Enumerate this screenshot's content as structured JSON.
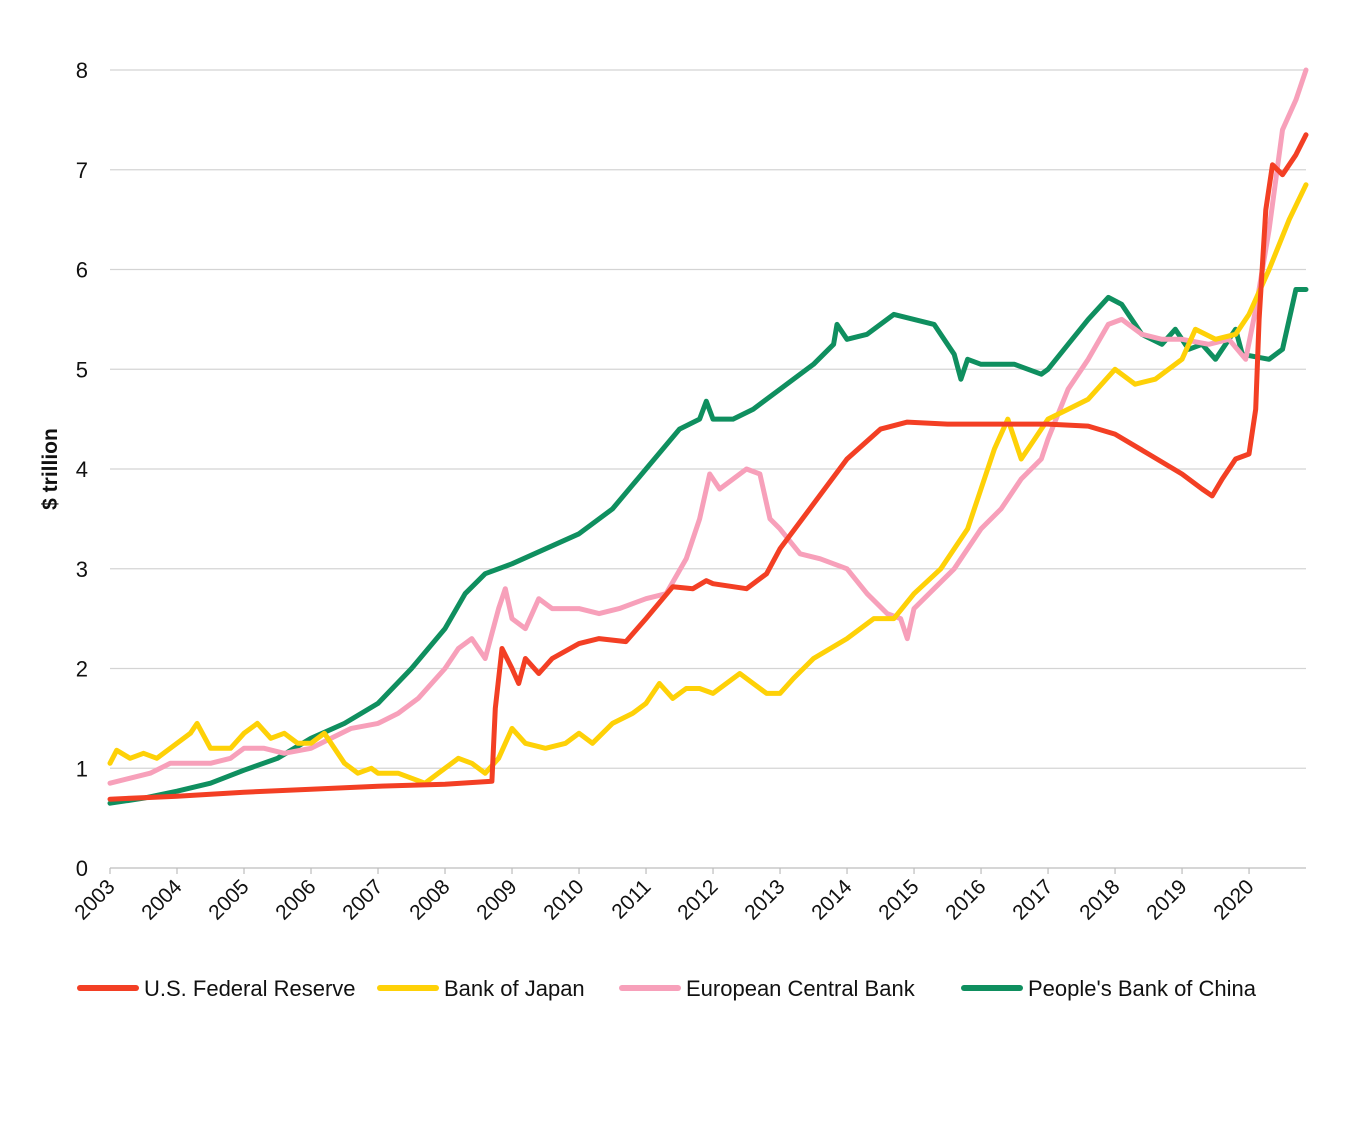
{
  "chart_data": {
    "type": "line",
    "ylabel": "$ trillion",
    "xlabel": "",
    "ylim": [
      0,
      8
    ],
    "xlim": [
      2003,
      2020.85
    ],
    "yticks": [
      0,
      1,
      2,
      3,
      4,
      5,
      6,
      7,
      8
    ],
    "xtick_labels": [
      "2003",
      "2004",
      "2005",
      "2006",
      "2007",
      "2008",
      "2009",
      "2010",
      "2011",
      "2012",
      "2013",
      "2014",
      "2015",
      "2016",
      "2017",
      "2018",
      "2019",
      "2020"
    ],
    "grid": "horizontal",
    "legend_position": "bottom",
    "series": [
      {
        "name": "U.S. Federal Reserve",
        "color": "#f33f24",
        "points": [
          [
            2003,
            0.69
          ],
          [
            2004,
            0.72
          ],
          [
            2005,
            0.76
          ],
          [
            2006,
            0.79
          ],
          [
            2007,
            0.82
          ],
          [
            2008,
            0.84
          ],
          [
            2008.7,
            0.87
          ],
          [
            2008.75,
            1.6
          ],
          [
            2008.85,
            2.2
          ],
          [
            2009.0,
            2.0
          ],
          [
            2009.1,
            1.85
          ],
          [
            2009.2,
            2.1
          ],
          [
            2009.4,
            1.95
          ],
          [
            2009.6,
            2.1
          ],
          [
            2010,
            2.25
          ],
          [
            2010.3,
            2.3
          ],
          [
            2010.7,
            2.27
          ],
          [
            2011,
            2.5
          ],
          [
            2011.4,
            2.82
          ],
          [
            2011.7,
            2.8
          ],
          [
            2011.9,
            2.88
          ],
          [
            2012,
            2.85
          ],
          [
            2012.5,
            2.8
          ],
          [
            2012.8,
            2.95
          ],
          [
            2013,
            3.2
          ],
          [
            2013.5,
            3.65
          ],
          [
            2014,
            4.1
          ],
          [
            2014.5,
            4.4
          ],
          [
            2014.9,
            4.47
          ],
          [
            2015.5,
            4.45
          ],
          [
            2016,
            4.45
          ],
          [
            2017,
            4.45
          ],
          [
            2017.6,
            4.43
          ],
          [
            2018,
            4.35
          ],
          [
            2018.5,
            4.15
          ],
          [
            2019,
            3.95
          ],
          [
            2019.3,
            3.8
          ],
          [
            2019.45,
            3.73
          ],
          [
            2019.6,
            3.9
          ],
          [
            2019.8,
            4.1
          ],
          [
            2020.0,
            4.15
          ],
          [
            2020.1,
            4.6
          ],
          [
            2020.15,
            5.5
          ],
          [
            2020.25,
            6.6
          ],
          [
            2020.35,
            7.05
          ],
          [
            2020.5,
            6.95
          ],
          [
            2020.7,
            7.15
          ],
          [
            2020.85,
            7.35
          ]
        ]
      },
      {
        "name": "Bank of Japan",
        "color": "#fed107",
        "points": [
          [
            2003,
            1.05
          ],
          [
            2003.1,
            1.18
          ],
          [
            2003.3,
            1.1
          ],
          [
            2003.5,
            1.15
          ],
          [
            2003.7,
            1.1
          ],
          [
            2004,
            1.25
          ],
          [
            2004.2,
            1.35
          ],
          [
            2004.3,
            1.45
          ],
          [
            2004.5,
            1.2
          ],
          [
            2004.8,
            1.2
          ],
          [
            2005,
            1.35
          ],
          [
            2005.2,
            1.45
          ],
          [
            2005.4,
            1.3
          ],
          [
            2005.6,
            1.35
          ],
          [
            2005.8,
            1.25
          ],
          [
            2006,
            1.25
          ],
          [
            2006.2,
            1.35
          ],
          [
            2006.3,
            1.25
          ],
          [
            2006.5,
            1.05
          ],
          [
            2006.7,
            0.95
          ],
          [
            2006.9,
            1.0
          ],
          [
            2007,
            0.95
          ],
          [
            2007.3,
            0.95
          ],
          [
            2007.5,
            0.9
          ],
          [
            2007.7,
            0.85
          ],
          [
            2008,
            1.0
          ],
          [
            2008.2,
            1.1
          ],
          [
            2008.4,
            1.05
          ],
          [
            2008.6,
            0.95
          ],
          [
            2008.8,
            1.1
          ],
          [
            2009,
            1.4
          ],
          [
            2009.2,
            1.25
          ],
          [
            2009.5,
            1.2
          ],
          [
            2009.8,
            1.25
          ],
          [
            2010,
            1.35
          ],
          [
            2010.2,
            1.25
          ],
          [
            2010.5,
            1.45
          ],
          [
            2010.8,
            1.55
          ],
          [
            2011,
            1.65
          ],
          [
            2011.2,
            1.85
          ],
          [
            2011.4,
            1.7
          ],
          [
            2011.6,
            1.8
          ],
          [
            2011.8,
            1.8
          ],
          [
            2012,
            1.75
          ],
          [
            2012.4,
            1.95
          ],
          [
            2012.6,
            1.85
          ],
          [
            2012.8,
            1.75
          ],
          [
            2013,
            1.75
          ],
          [
            2013.2,
            1.9
          ],
          [
            2013.5,
            2.1
          ],
          [
            2014,
            2.3
          ],
          [
            2014.4,
            2.5
          ],
          [
            2014.7,
            2.5
          ],
          [
            2015,
            2.75
          ],
          [
            2015.4,
            3.0
          ],
          [
            2015.8,
            3.4
          ],
          [
            2016,
            3.8
          ],
          [
            2016.2,
            4.2
          ],
          [
            2016.4,
            4.5
          ],
          [
            2016.6,
            4.1
          ],
          [
            2016.8,
            4.3
          ],
          [
            2017,
            4.5
          ],
          [
            2017.3,
            4.6
          ],
          [
            2017.6,
            4.7
          ],
          [
            2018,
            5.0
          ],
          [
            2018.3,
            4.85
          ],
          [
            2018.6,
            4.9
          ],
          [
            2019,
            5.1
          ],
          [
            2019.2,
            5.4
          ],
          [
            2019.5,
            5.3
          ],
          [
            2019.8,
            5.35
          ],
          [
            2020,
            5.55
          ],
          [
            2020.3,
            6.0
          ],
          [
            2020.6,
            6.5
          ],
          [
            2020.85,
            6.85
          ]
        ]
      },
      {
        "name": "European Central Bank",
        "color": "#f7a0ba",
        "points": [
          [
            2003,
            0.85
          ],
          [
            2003.3,
            0.9
          ],
          [
            2003.6,
            0.95
          ],
          [
            2003.9,
            1.05
          ],
          [
            2004.2,
            1.05
          ],
          [
            2004.5,
            1.05
          ],
          [
            2004.8,
            1.1
          ],
          [
            2005,
            1.2
          ],
          [
            2005.3,
            1.2
          ],
          [
            2005.6,
            1.15
          ],
          [
            2006,
            1.2
          ],
          [
            2006.3,
            1.3
          ],
          [
            2006.6,
            1.4
          ],
          [
            2007,
            1.45
          ],
          [
            2007.3,
            1.55
          ],
          [
            2007.6,
            1.7
          ],
          [
            2008,
            2.0
          ],
          [
            2008.2,
            2.2
          ],
          [
            2008.4,
            2.3
          ],
          [
            2008.6,
            2.1
          ],
          [
            2008.8,
            2.6
          ],
          [
            2008.9,
            2.8
          ],
          [
            2009.0,
            2.5
          ],
          [
            2009.2,
            2.4
          ],
          [
            2009.4,
            2.7
          ],
          [
            2009.6,
            2.6
          ],
          [
            2010,
            2.6
          ],
          [
            2010.3,
            2.55
          ],
          [
            2010.6,
            2.6
          ],
          [
            2011,
            2.7
          ],
          [
            2011.3,
            2.75
          ],
          [
            2011.6,
            3.1
          ],
          [
            2011.8,
            3.5
          ],
          [
            2011.95,
            3.95
          ],
          [
            2012.1,
            3.8
          ],
          [
            2012.3,
            3.9
          ],
          [
            2012.5,
            4.0
          ],
          [
            2012.7,
            3.95
          ],
          [
            2012.85,
            3.5
          ],
          [
            2013,
            3.4
          ],
          [
            2013.3,
            3.15
          ],
          [
            2013.6,
            3.1
          ],
          [
            2014,
            3.0
          ],
          [
            2014.3,
            2.75
          ],
          [
            2014.6,
            2.55
          ],
          [
            2014.8,
            2.5
          ],
          [
            2014.9,
            2.3
          ],
          [
            2015.0,
            2.6
          ],
          [
            2015.3,
            2.8
          ],
          [
            2015.6,
            3.0
          ],
          [
            2016,
            3.4
          ],
          [
            2016.3,
            3.6
          ],
          [
            2016.6,
            3.9
          ],
          [
            2016.9,
            4.1
          ],
          [
            2017,
            4.3
          ],
          [
            2017.3,
            4.8
          ],
          [
            2017.6,
            5.1
          ],
          [
            2017.9,
            5.45
          ],
          [
            2018.1,
            5.5
          ],
          [
            2018.4,
            5.35
          ],
          [
            2018.7,
            5.3
          ],
          [
            2019,
            5.3
          ],
          [
            2019.4,
            5.25
          ],
          [
            2019.7,
            5.3
          ],
          [
            2019.95,
            5.1
          ],
          [
            2020.1,
            5.6
          ],
          [
            2020.3,
            6.4
          ],
          [
            2020.5,
            7.4
          ],
          [
            2020.7,
            7.7
          ],
          [
            2020.85,
            8.0
          ]
        ]
      },
      {
        "name": "People's Bank of China",
        "color": "#0f8f5f",
        "points": [
          [
            2003,
            0.65
          ],
          [
            2003.5,
            0.7
          ],
          [
            2004,
            0.77
          ],
          [
            2004.5,
            0.85
          ],
          [
            2005,
            0.98
          ],
          [
            2005.5,
            1.1
          ],
          [
            2006,
            1.3
          ],
          [
            2006.5,
            1.45
          ],
          [
            2007,
            1.65
          ],
          [
            2007.5,
            2.0
          ],
          [
            2008,
            2.4
          ],
          [
            2008.3,
            2.75
          ],
          [
            2008.6,
            2.95
          ],
          [
            2009,
            3.05
          ],
          [
            2009.5,
            3.2
          ],
          [
            2010,
            3.35
          ],
          [
            2010.5,
            3.6
          ],
          [
            2011,
            4.0
          ],
          [
            2011.5,
            4.4
          ],
          [
            2011.8,
            4.5
          ],
          [
            2011.9,
            4.68
          ],
          [
            2012.0,
            4.5
          ],
          [
            2012.3,
            4.5
          ],
          [
            2012.6,
            4.6
          ],
          [
            2013,
            4.8
          ],
          [
            2013.5,
            5.05
          ],
          [
            2013.8,
            5.25
          ],
          [
            2013.85,
            5.45
          ],
          [
            2014.0,
            5.3
          ],
          [
            2014.3,
            5.35
          ],
          [
            2014.7,
            5.55
          ],
          [
            2015,
            5.5
          ],
          [
            2015.3,
            5.45
          ],
          [
            2015.6,
            5.15
          ],
          [
            2015.7,
            4.9
          ],
          [
            2015.8,
            5.1
          ],
          [
            2016,
            5.05
          ],
          [
            2016.5,
            5.05
          ],
          [
            2016.9,
            4.95
          ],
          [
            2017,
            5.0
          ],
          [
            2017.3,
            5.25
          ],
          [
            2017.6,
            5.5
          ],
          [
            2017.9,
            5.72
          ],
          [
            2018.1,
            5.65
          ],
          [
            2018.4,
            5.35
          ],
          [
            2018.7,
            5.25
          ],
          [
            2018.9,
            5.4
          ],
          [
            2019.1,
            5.2
          ],
          [
            2019.3,
            5.25
          ],
          [
            2019.5,
            5.1
          ],
          [
            2019.8,
            5.4
          ],
          [
            2019.9,
            5.15
          ],
          [
            2020.3,
            5.1
          ],
          [
            2020.5,
            5.2
          ],
          [
            2020.6,
            5.5
          ],
          [
            2020.7,
            5.8
          ],
          [
            2020.85,
            5.8
          ]
        ]
      }
    ]
  }
}
